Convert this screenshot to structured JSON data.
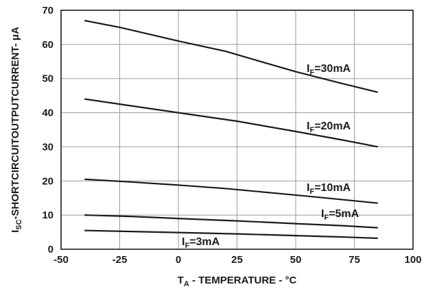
{
  "chart_data": {
    "type": "line",
    "xlabel": {
      "main": "T",
      "sub": "A",
      "rest": " - TEMPERATURE - °C"
    },
    "ylabel": {
      "main": "I",
      "sub": "SC",
      "rest": "-SHORTCIRCUITOUTPUTCURRENT- μA"
    },
    "xlim": [
      -50,
      100
    ],
    "ylim": [
      0,
      70
    ],
    "xticks": [
      -50,
      -25,
      0,
      25,
      50,
      75,
      100
    ],
    "yticks": [
      0,
      10,
      20,
      30,
      40,
      50,
      60,
      70
    ],
    "grid": true,
    "colors": {
      "line": "#1a1a1a",
      "grid": "#9a9a9a",
      "axis": "#1a1a1a"
    },
    "series": [
      {
        "label_main": "I",
        "label_sub": "F",
        "label_rest": "=30mA",
        "x": [
          -40,
          -25,
          0,
          20,
          35,
          50,
          70,
          85
        ],
        "y": [
          67,
          65,
          61,
          58,
          55,
          52,
          48.5,
          46
        ]
      },
      {
        "label_main": "I",
        "label_sub": "F",
        "label_rest": "=20mA",
        "x": [
          -40,
          -25,
          0,
          25,
          50,
          70,
          85
        ],
        "y": [
          44,
          42.5,
          40,
          37.5,
          34.5,
          32,
          30
        ]
      },
      {
        "label_main": "I",
        "label_sub": "F",
        "label_rest": "=10mA",
        "x": [
          -40,
          -20,
          0,
          20,
          40,
          60,
          85
        ],
        "y": [
          20.5,
          19.7,
          18.8,
          17.8,
          16.5,
          15.2,
          13.5
        ]
      },
      {
        "label_main": "I",
        "label_sub": "F",
        "label_rest": "=5mA",
        "x": [
          -40,
          -20,
          0,
          25,
          50,
          70,
          85
        ],
        "y": [
          10,
          9.6,
          9,
          8.3,
          7.5,
          6.9,
          6.3
        ]
      },
      {
        "label_main": "I",
        "label_sub": "F",
        "label_rest": "=3mA",
        "x": [
          -40,
          -20,
          0,
          25,
          50,
          70,
          85
        ],
        "y": [
          5.5,
          5.2,
          4.9,
          4.5,
          4,
          3.6,
          3.2
        ]
      }
    ]
  }
}
